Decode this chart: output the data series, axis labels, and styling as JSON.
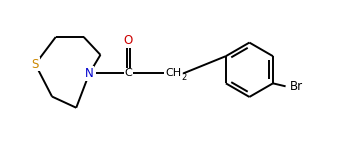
{
  "bg_color": "#ffffff",
  "line_color": "#000000",
  "label_color_N": "#0000cd",
  "label_color_S": "#cc8800",
  "label_color_O": "#cc0000",
  "label_color_Br": "#000000",
  "label_color_C": "#000000",
  "line_width": 1.4,
  "figsize": [
    3.61,
    1.41
  ],
  "dpi": 100,
  "xlim": [
    0.0,
    9.5
  ],
  "ylim": [
    0.3,
    3.3
  ]
}
